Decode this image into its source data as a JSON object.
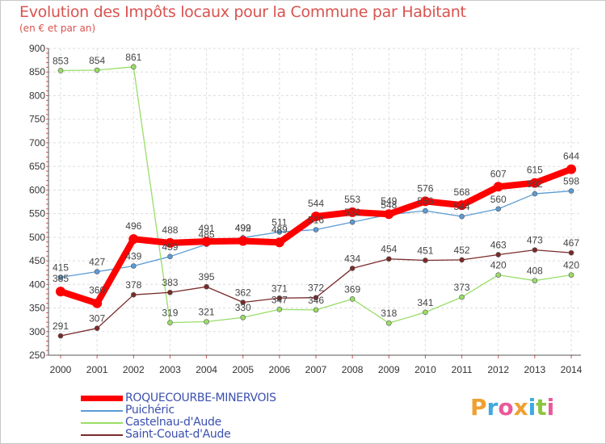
{
  "title": "Evolution des Impôts locaux pour la Commune par Habitant",
  "subtitle": "(en € et par an)",
  "logo": {
    "text": "Proxiti"
  },
  "chart_data": {
    "type": "line",
    "title": "Evolution des Impôts locaux pour la Commune par Habitant",
    "ylabel": "(en € et par an)",
    "xlabel": "",
    "ylim": [
      250,
      900
    ],
    "yticks": [
      250,
      300,
      350,
      400,
      450,
      500,
      550,
      600,
      650,
      700,
      750,
      800,
      850,
      900
    ],
    "categories": [
      "2000",
      "2001",
      "2002",
      "2003",
      "2004",
      "2005",
      "2006",
      "2007",
      "2008",
      "2009",
      "2010",
      "2011",
      "2012",
      "2013",
      "2014"
    ],
    "grid": true,
    "legend_position": "bottom-left",
    "series": [
      {
        "name": "ROQUECOURBE-MINERVOIS",
        "color": "#ff0000",
        "values": [
          385,
          360,
          496,
          488,
          491,
          492,
          489,
          544,
          553,
          549,
          576,
          568,
          607,
          615,
          644
        ]
      },
      {
        "name": "Puichéric",
        "color": "#5b9bd5",
        "values": [
          415,
          427,
          439,
          459,
          485,
          499,
          511,
          516,
          532,
          548,
          556,
          544,
          560,
          592,
          598
        ]
      },
      {
        "name": "Castelnau-d'Aude",
        "color": "#99dd66",
        "values": [
          853,
          854,
          861,
          319,
          321,
          330,
          347,
          346,
          369,
          318,
          341,
          373,
          420,
          408,
          420
        ]
      },
      {
        "name": "Saint-Couat-d'Aude",
        "color": "#7b2a2a",
        "values": [
          291,
          307,
          378,
          383,
          395,
          362,
          371,
          372,
          434,
          454,
          451,
          452,
          463,
          473,
          467
        ]
      }
    ]
  }
}
